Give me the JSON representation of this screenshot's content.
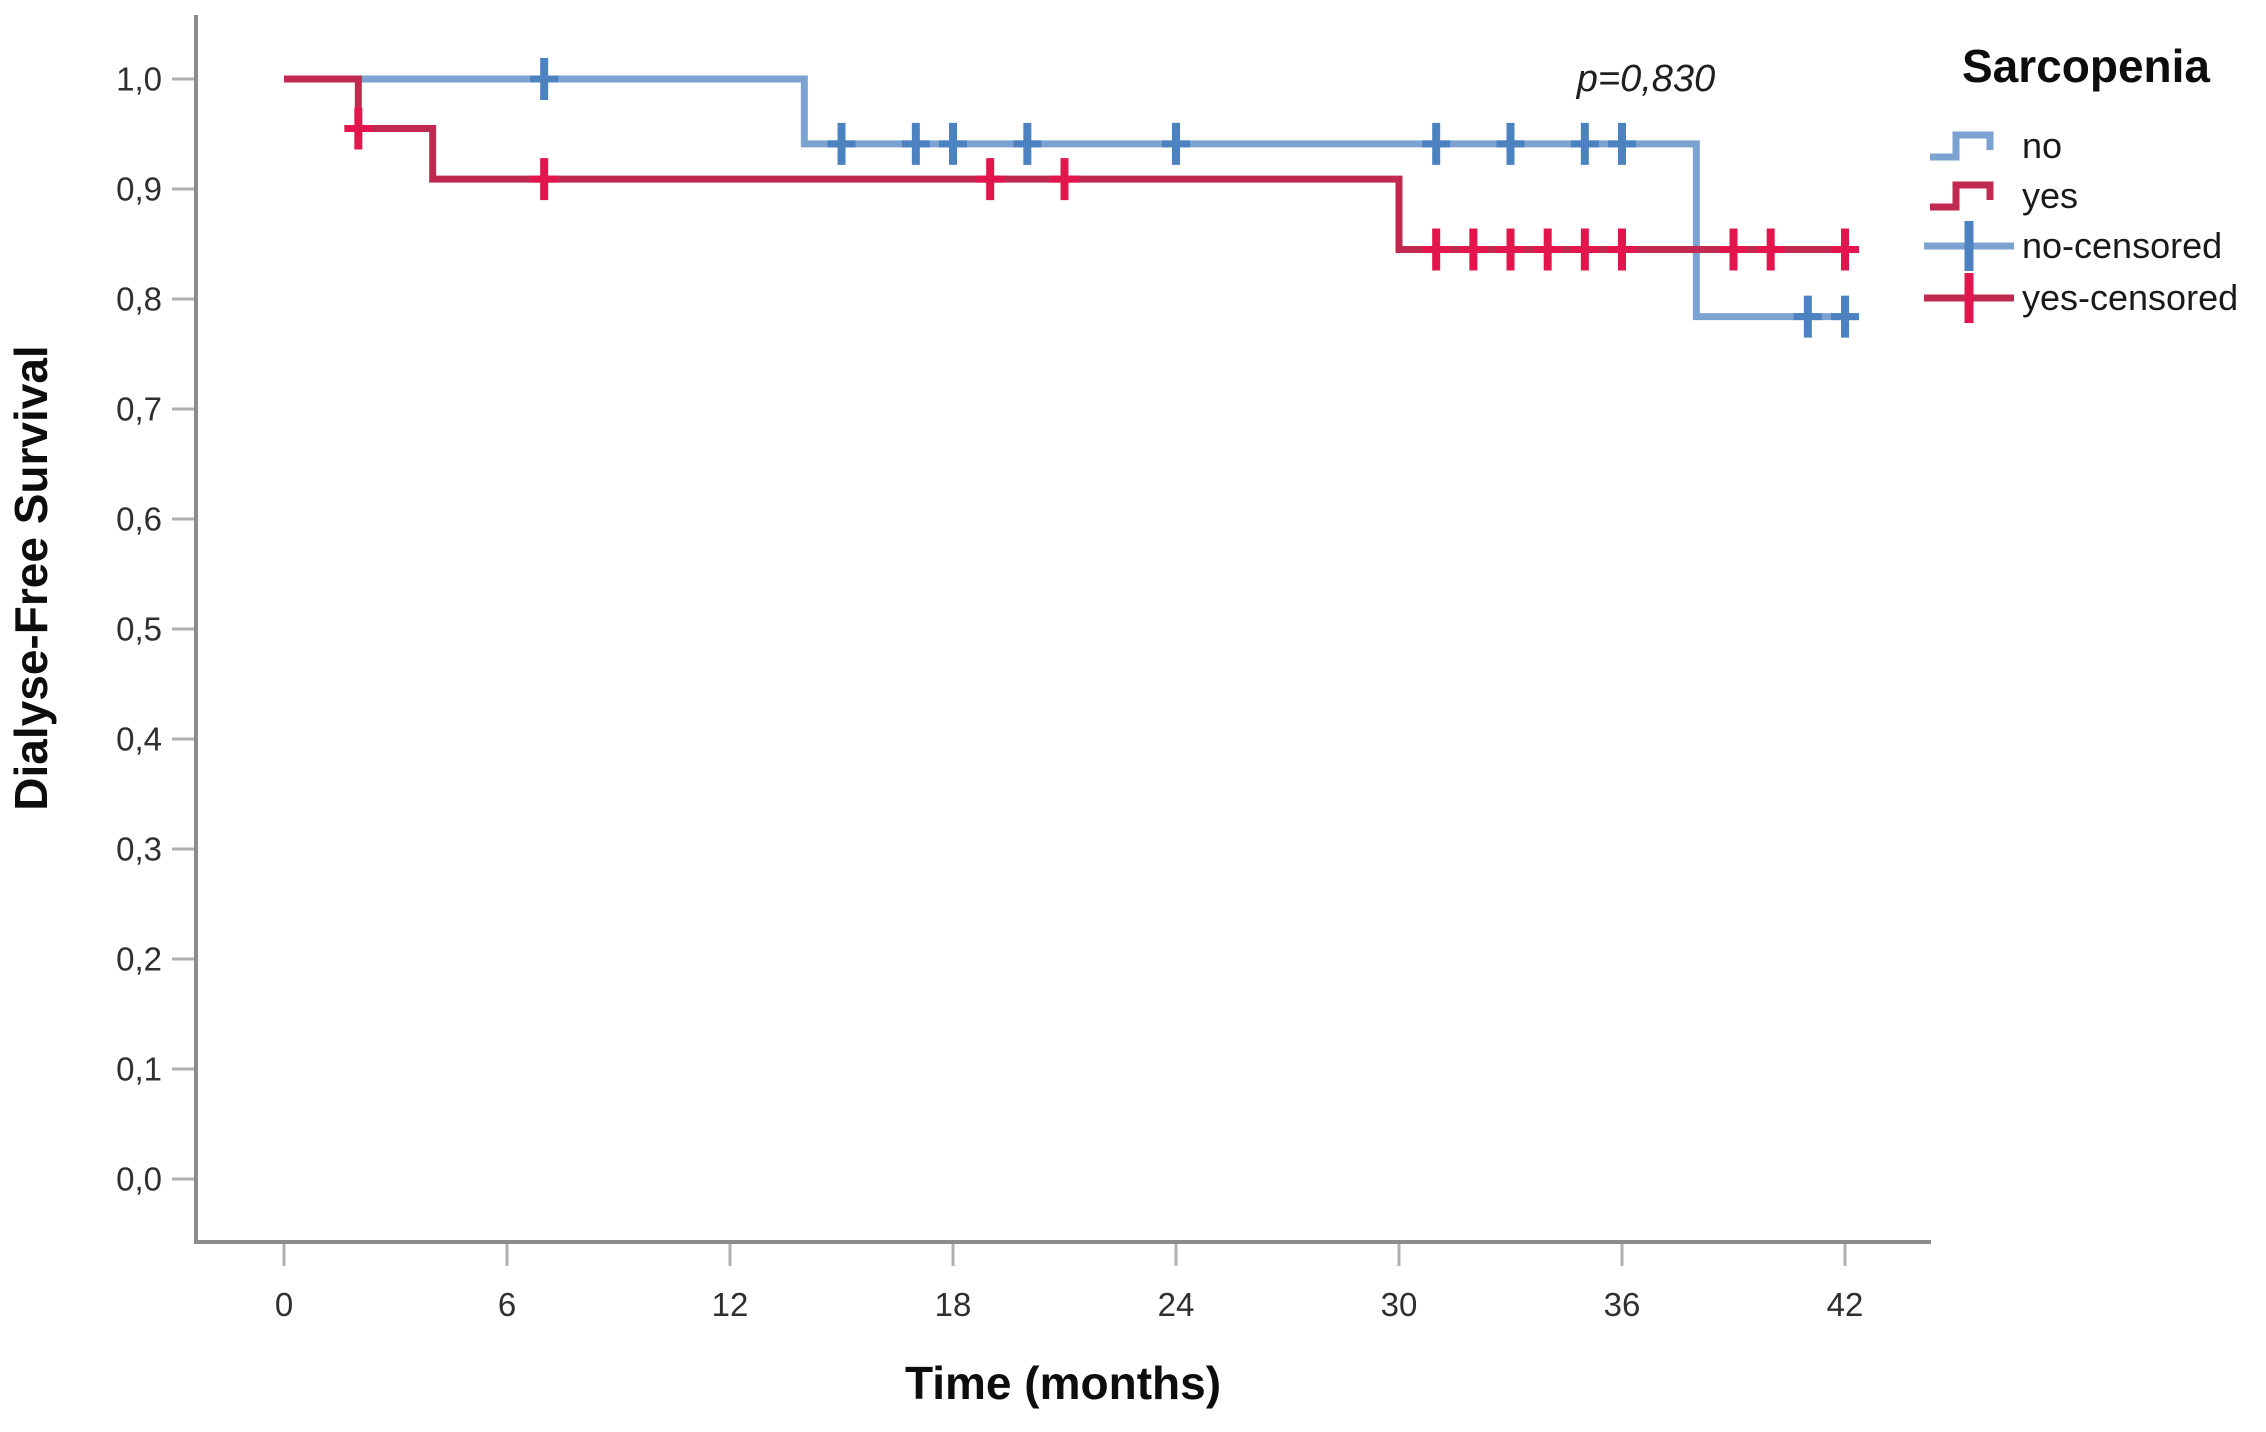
{
  "chart_data": {
    "type": "line",
    "subtype": "kaplan-meier-step",
    "title": "",
    "xlabel": "Time (months)",
    "ylabel": "Dialyse-Free Survival",
    "p_value": "p=0,830",
    "xlim": [
      0,
      44
    ],
    "ylim": [
      -0.06,
      1.06
    ],
    "grid": "off",
    "x_ticks": [
      0,
      6,
      12,
      18,
      24,
      30,
      36,
      42
    ],
    "x_tick_labels": [
      "0",
      "6",
      "12",
      "18",
      "24",
      "30",
      "36",
      "42"
    ],
    "y_ticks": [
      1.0,
      0.9,
      0.8,
      0.7,
      0.6,
      0.5,
      0.4,
      0.3,
      0.2,
      0.1,
      0.0
    ],
    "y_tick_labels": [
      "1,0",
      "0,9",
      "0,8",
      "0,7",
      "0,6",
      "0,5",
      "0,4",
      "0,3",
      "0,2",
      "0,1",
      "0,0"
    ],
    "axis_color": "#8c8c8c",
    "tick_color": "#b0b0b0",
    "legend": {
      "title": "Sarcopenia",
      "position": "top-right",
      "items": [
        {
          "label": "no"
        },
        {
          "label": "yes"
        },
        {
          "label": "no-censored"
        },
        {
          "label": "yes-censored"
        }
      ]
    },
    "series": [
      {
        "name": "no",
        "color": "#7ba2d0",
        "censor_color": "#4c82bf",
        "steps": [
          [
            0,
            1.0
          ],
          [
            14,
            1.0
          ],
          [
            14,
            0.941
          ],
          [
            38,
            0.941
          ],
          [
            38,
            0.784
          ],
          [
            42.3,
            0.784
          ]
        ],
        "censored": [
          [
            7,
            1.0
          ],
          [
            15,
            0.941
          ],
          [
            17,
            0.941
          ],
          [
            18,
            0.941
          ],
          [
            20,
            0.941
          ],
          [
            24,
            0.941
          ],
          [
            31,
            0.941
          ],
          [
            33,
            0.941
          ],
          [
            35,
            0.941
          ],
          [
            36,
            0.941
          ],
          [
            41,
            0.784
          ],
          [
            42,
            0.784
          ]
        ]
      },
      {
        "name": "yes",
        "color": "#c22950",
        "censor_color": "#e2164c",
        "steps": [
          [
            0,
            1.0
          ],
          [
            2,
            1.0
          ],
          [
            2,
            0.955
          ],
          [
            4,
            0.955
          ],
          [
            4,
            0.909
          ],
          [
            30,
            0.909
          ],
          [
            30,
            0.845
          ],
          [
            42.3,
            0.845
          ]
        ],
        "censored": [
          [
            2,
            0.955
          ],
          [
            7,
            0.909
          ],
          [
            19,
            0.909
          ],
          [
            21,
            0.909
          ],
          [
            31,
            0.845
          ],
          [
            32,
            0.845
          ],
          [
            33,
            0.845
          ],
          [
            34,
            0.845
          ],
          [
            35,
            0.845
          ],
          [
            36,
            0.845
          ],
          [
            39,
            0.845
          ],
          [
            40,
            0.845
          ],
          [
            42,
            0.845
          ]
        ]
      }
    ]
  }
}
